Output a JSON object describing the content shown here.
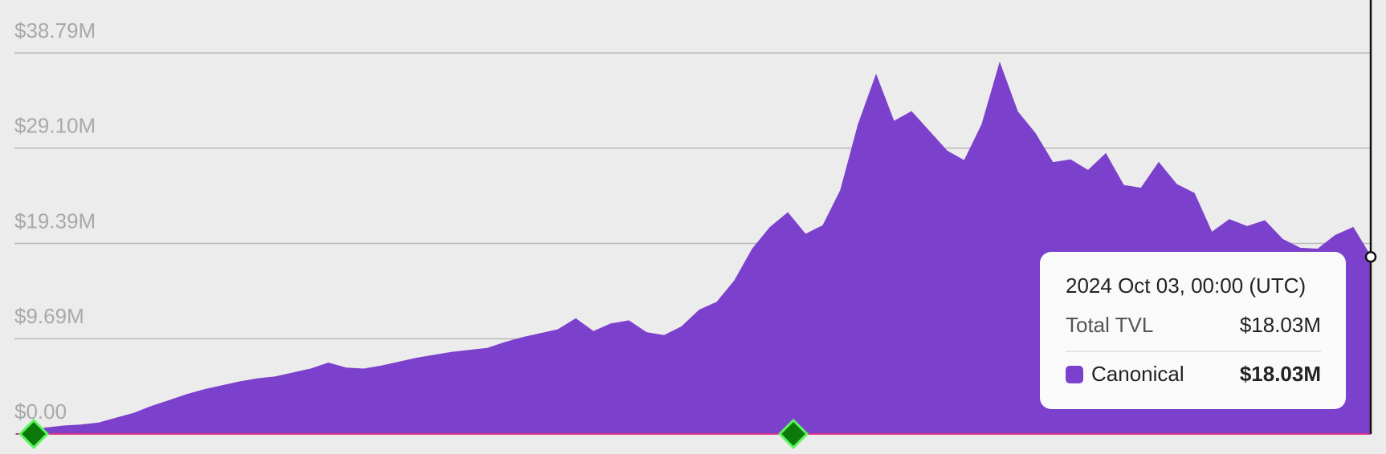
{
  "chart_data": {
    "type": "area",
    "series": [
      {
        "name": "Canonical",
        "color": "#7c41cc",
        "values": [
          200000,
          600000,
          800000,
          900000,
          1100000,
          1600000,
          2100000,
          2800000,
          3400000,
          4000000,
          4500000,
          4900000,
          5300000,
          5600000,
          5800000,
          6200000,
          6600000,
          7200000,
          6700000,
          6600000,
          6900000,
          7300000,
          7700000,
          8000000,
          8300000,
          8500000,
          8700000,
          9300000,
          9800000,
          10200000,
          10600000,
          11700000,
          10400000,
          11200000,
          11500000,
          10300000,
          10000000,
          10900000,
          12600000,
          13400000,
          15600000,
          18800000,
          21000000,
          22500000,
          20300000,
          21200000,
          24800000,
          31500000,
          36500000,
          31800000,
          32800000,
          30800000,
          28800000,
          27800000,
          31500000,
          37700000,
          32800000,
          30600000,
          27600000,
          27900000,
          26800000,
          28500000,
          25300000,
          25000000,
          27600000,
          25400000,
          24500000,
          20500000,
          21800000,
          21100000,
          21700000,
          19800000,
          18900000,
          18800000,
          20200000,
          21000000,
          18030000
        ]
      }
    ],
    "ylim": [
      0,
      38790000
    ],
    "yticks": [
      {
        "value": 0,
        "label": "$0.00"
      },
      {
        "value": 9690000,
        "label": "$9.69M"
      },
      {
        "value": 19390000,
        "label": "$19.39M"
      },
      {
        "value": 29100000,
        "label": "$29.10M"
      },
      {
        "value": 38790000,
        "label": "$38.79M"
      }
    ],
    "grid": true,
    "tooltip": {
      "title": "2024 Oct 03, 00:00 (UTC)",
      "total_label": "Total TVL",
      "total_value": 18030000,
      "total_value_label": "$18.03M",
      "series_value": 18030000,
      "series_value_label": "$18.03M"
    }
  }
}
